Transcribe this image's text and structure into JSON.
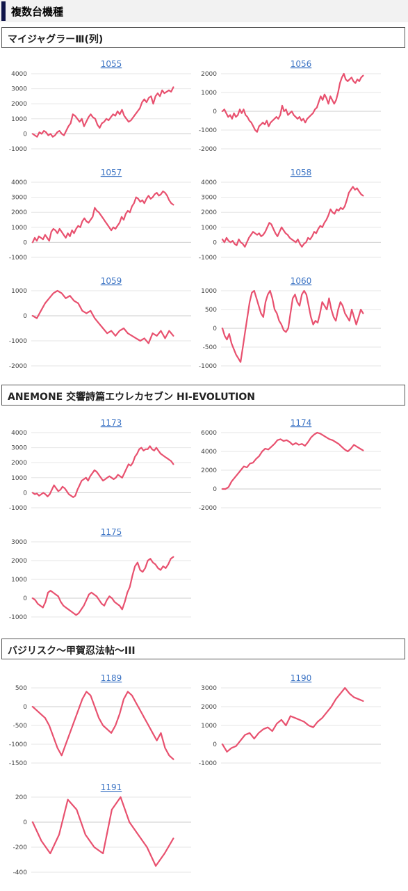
{
  "page": {
    "title": "複数台機種"
  },
  "colors": {
    "accent": "#0f1448",
    "line": "#e8516f",
    "grid": "#e6e6e6",
    "title": "#3b73c4"
  },
  "sections": [
    {
      "title": "マイジャグラーⅢ(列)"
    },
    {
      "title": "ANEMONE 交響詩篇エウレカセブン HI-EVOLUTION"
    },
    {
      "title": "バジリスク～甲賀忍法帖～III"
    }
  ],
  "chart_data": [
    {
      "type": "line",
      "title": "1055",
      "yticks": [
        4000,
        3000,
        2000,
        1000,
        0,
        -1000
      ],
      "ylim": [
        -1000,
        4000
      ],
      "values": [
        0,
        -100,
        -200,
        100,
        0,
        200,
        100,
        -100,
        0,
        -200,
        -100,
        100,
        200,
        0,
        -100,
        200,
        500,
        700,
        1300,
        1200,
        1000,
        800,
        1000,
        500,
        800,
        1100,
        1300,
        1100,
        1000,
        600,
        400,
        700,
        800,
        1000,
        900,
        1100,
        1300,
        1200,
        1500,
        1300,
        1600,
        1200,
        1000,
        800,
        900,
        1100,
        1300,
        1500,
        1700,
        2100,
        2300,
        2100,
        2400,
        2500,
        2000,
        2500,
        2700,
        2500,
        2900,
        2700,
        2800,
        2900,
        2800,
        3100
      ]
    },
    {
      "type": "line",
      "title": "1056",
      "yticks": [
        2000,
        1000,
        0,
        -1000,
        -2000
      ],
      "ylim": [
        -2000,
        2000
      ],
      "values": [
        0,
        100,
        -100,
        -300,
        -200,
        -400,
        -100,
        -300,
        -200,
        100,
        -100,
        100,
        -200,
        -300,
        -500,
        -600,
        -800,
        -1000,
        -1100,
        -800,
        -700,
        -600,
        -700,
        -500,
        -800,
        -600,
        -500,
        -400,
        -300,
        -400,
        -200,
        300,
        0,
        100,
        -200,
        -100,
        0,
        -200,
        -300,
        -400,
        -300,
        -500,
        -400,
        -600,
        -400,
        -300,
        -200,
        -100,
        100,
        200,
        500,
        800,
        600,
        900,
        700,
        400,
        800,
        600,
        400,
        600,
        1000,
        1500,
        1800,
        2000,
        1700,
        1600,
        1700,
        1800,
        1600,
        1500,
        1700,
        1600,
        1800,
        1900
      ]
    },
    {
      "type": "line",
      "title": "1057",
      "yticks": [
        4000,
        3000,
        2000,
        1000,
        0,
        -1000
      ],
      "ylim": [
        -1000,
        4000
      ],
      "values": [
        0,
        300,
        100,
        400,
        300,
        200,
        500,
        300,
        100,
        700,
        900,
        800,
        600,
        900,
        700,
        500,
        300,
        600,
        400,
        800,
        600,
        900,
        1100,
        1000,
        1400,
        1600,
        1400,
        1300,
        1500,
        1700,
        2300,
        2100,
        2000,
        1800,
        1600,
        1400,
        1200,
        1000,
        800,
        1000,
        900,
        1100,
        1300,
        1700,
        1500,
        1900,
        2100,
        2000,
        2400,
        2600,
        3000,
        2900,
        2700,
        2800,
        2600,
        2900,
        3100,
        2900,
        3000,
        3200,
        3300,
        3100,
        3200,
        3400,
        3300,
        3100,
        2800,
        2600,
        2500
      ]
    },
    {
      "type": "line",
      "title": "1058",
      "yticks": [
        4000,
        3000,
        2000,
        1000,
        0,
        -1000
      ],
      "ylim": [
        -1000,
        4000
      ],
      "values": [
        200,
        0,
        300,
        100,
        0,
        100,
        -100,
        -200,
        200,
        0,
        -100,
        -300,
        0,
        300,
        500,
        700,
        600,
        500,
        600,
        400,
        500,
        700,
        1000,
        1300,
        1200,
        900,
        600,
        400,
        700,
        1000,
        800,
        600,
        500,
        300,
        200,
        100,
        0,
        200,
        -100,
        -300,
        -100,
        0,
        300,
        200,
        400,
        700,
        600,
        900,
        1100,
        1000,
        1300,
        1500,
        1800,
        2200,
        2000,
        1900,
        2200,
        2100,
        2300,
        2200,
        2400,
        2800,
        3300,
        3500,
        3700,
        3500,
        3600,
        3400,
        3200,
        3100
      ]
    },
    {
      "type": "line",
      "title": "1059",
      "yticks": [
        1000,
        0,
        -1000,
        -2000
      ],
      "ylim": [
        -2000,
        1000
      ],
      "values": [
        0,
        -100,
        200,
        500,
        700,
        900,
        1000,
        900,
        700,
        800,
        600,
        500,
        200,
        100,
        200,
        -100,
        -300,
        -500,
        -700,
        -600,
        -800,
        -600,
        -500,
        -700,
        -800,
        -900,
        -1000,
        -900,
        -1100,
        -700,
        -800,
        -600,
        -900,
        -600,
        -800
      ]
    },
    {
      "type": "line",
      "title": "1060",
      "yticks": [
        1000,
        500,
        0,
        -500,
        -1000
      ],
      "ylim": [
        -1000,
        1000
      ],
      "values": [
        0,
        -200,
        -300,
        -150,
        -400,
        -550,
        -700,
        -800,
        -900,
        -500,
        -100,
        300,
        700,
        950,
        1000,
        800,
        600,
        400,
        300,
        700,
        900,
        1000,
        800,
        500,
        400,
        200,
        100,
        -50,
        -100,
        0,
        400,
        800,
        900,
        700,
        600,
        900,
        1000,
        900,
        600,
        300,
        100,
        200,
        150,
        400,
        700,
        600,
        500,
        800,
        500,
        300,
        200,
        500,
        700,
        600,
        400,
        300,
        200,
        500,
        300,
        100,
        300,
        500,
        400
      ]
    },
    {
      "type": "line",
      "title": "1173",
      "yticks": [
        4000,
        3000,
        2000,
        1000,
        0,
        -1000
      ],
      "ylim": [
        -1000,
        4000
      ],
      "values": [
        0,
        -100,
        -50,
        -200,
        -100,
        0,
        -100,
        -250,
        -100,
        200,
        500,
        300,
        100,
        200,
        400,
        300,
        100,
        -100,
        -200,
        -300,
        -200,
        200,
        500,
        800,
        900,
        1000,
        800,
        1100,
        1300,
        1500,
        1400,
        1200,
        1000,
        800,
        900,
        1000,
        1100,
        1000,
        900,
        1000,
        1200,
        1100,
        1000,
        1300,
        1600,
        1900,
        1800,
        2000,
        2400,
        2600,
        2900,
        3000,
        2800,
        2900,
        2900,
        3100,
        2900,
        2800,
        3000,
        2800,
        2600,
        2500,
        2400,
        2300,
        2200,
        2100,
        1900
      ]
    },
    {
      "type": "line",
      "title": "1174",
      "yticks": [
        6000,
        4000,
        2000,
        0,
        -2000
      ],
      "ylim": [
        -2000,
        6000
      ],
      "values": [
        0,
        0,
        200,
        800,
        1200,
        1600,
        2000,
        2400,
        2300,
        2700,
        2800,
        3200,
        3500,
        4000,
        4300,
        4200,
        4500,
        4800,
        5200,
        5300,
        5100,
        5200,
        5000,
        4700,
        4900,
        4700,
        4800,
        4600,
        5000,
        5500,
        5800,
        6000,
        5900,
        5700,
        5500,
        5300,
        5200,
        5000,
        4800,
        4500,
        4200,
        4000,
        4300,
        4700,
        4500,
        4300,
        4100
      ]
    },
    {
      "type": "line",
      "title": "1175",
      "yticks": [
        3000,
        2000,
        1000,
        0,
        -1000
      ],
      "ylim": [
        -1000,
        3000
      ],
      "values": [
        0,
        -100,
        -300,
        -400,
        -500,
        -200,
        300,
        400,
        300,
        200,
        100,
        -200,
        -400,
        -500,
        -600,
        -700,
        -800,
        -900,
        -800,
        -600,
        -400,
        -100,
        200,
        300,
        200,
        100,
        -100,
        -300,
        -400,
        -100,
        100,
        0,
        -200,
        -300,
        -400,
        -600,
        -200,
        300,
        600,
        1200,
        1700,
        1900,
        1500,
        1400,
        1600,
        2000,
        2100,
        1900,
        1800,
        1600,
        1500,
        1700,
        1600,
        1800,
        2100,
        2200
      ]
    },
    {
      "type": "line",
      "title": "1189",
      "yticks": [
        500,
        0,
        -500,
        -1000,
        -1500
      ],
      "ylim": [
        -1500,
        500
      ],
      "values": [
        0,
        -100,
        -200,
        -300,
        -500,
        -800,
        -1100,
        -1300,
        -1000,
        -700,
        -400,
        -100,
        200,
        400,
        300,
        0,
        -300,
        -500,
        -600,
        -700,
        -500,
        -200,
        200,
        400,
        300,
        100,
        -100,
        -300,
        -500,
        -700,
        -900,
        -700,
        -1100,
        -1300,
        -1400
      ]
    },
    {
      "type": "line",
      "title": "1190",
      "yticks": [
        3000,
        2000,
        1000,
        0,
        -1000
      ],
      "ylim": [
        -1000,
        3000
      ],
      "values": [
        0,
        -400,
        -200,
        -100,
        200,
        500,
        600,
        300,
        600,
        800,
        900,
        700,
        1100,
        1300,
        1000,
        1500,
        1400,
        1300,
        1200,
        1000,
        900,
        1200,
        1400,
        1700,
        2000,
        2400,
        2700,
        3000,
        2700,
        2500,
        2400,
        2300
      ]
    },
    {
      "type": "line",
      "title": "1191",
      "yticks": [
        200,
        0,
        -200,
        -400
      ],
      "ylim": [
        -400,
        200
      ],
      "values": [
        0,
        -150,
        -250,
        -100,
        180,
        100,
        -100,
        -200,
        -250,
        100,
        200,
        0,
        -100,
        -200,
        -350,
        -250,
        -130
      ]
    }
  ]
}
